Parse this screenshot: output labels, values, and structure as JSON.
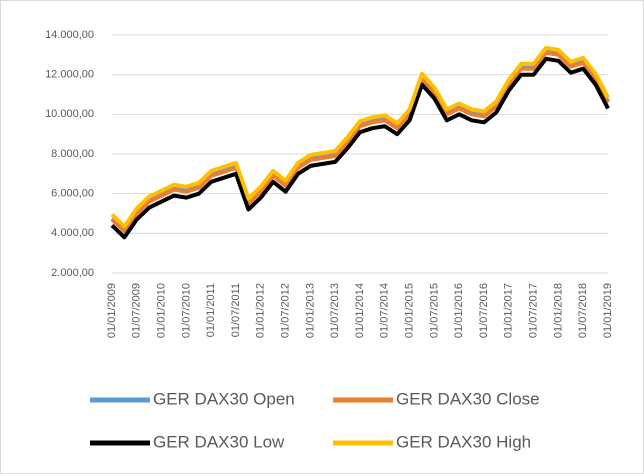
{
  "chart_data": {
    "type": "line",
    "categories": [
      "01/01/2009",
      null,
      "01/07/2009",
      null,
      "01/01/2010",
      null,
      "01/07/2010",
      null,
      "01/01/2011",
      null,
      "01/07/2011",
      null,
      "01/01/2012",
      null,
      "01/07/2012",
      null,
      "01/01/2013",
      null,
      "01/07/2013",
      null,
      "01/01/2014",
      null,
      "01/07/2014",
      null,
      "01/01/2015",
      null,
      "01/07/2015",
      null,
      "01/01/2016",
      null,
      "01/07/2016",
      null,
      "01/01/2017",
      null,
      "01/07/2017",
      null,
      "01/01/2018",
      null,
      "01/07/2018",
      null,
      "01/01/2019"
    ],
    "series": [
      {
        "name": "GER DAX30 Open",
        "color": "#5b9bd5",
        "values": [
          4750,
          4150,
          5050,
          5650,
          5950,
          6250,
          6150,
          6350,
          6950,
          7150,
          7350,
          5550,
          6150,
          6950,
          6450,
          7350,
          7750,
          7850,
          7950,
          8650,
          9450,
          9650,
          9750,
          9350,
          10050,
          11850,
          11150,
          10050,
          10350,
          10050,
          9950,
          10450,
          11550,
          12350,
          12350,
          13150,
          13050,
          12450,
          12650,
          11850,
          10650
        ]
      },
      {
        "name": "GER DAX30 Close",
        "color": "#ed7d31",
        "values": [
          4700,
          4100,
          5000,
          5600,
          5900,
          6200,
          6100,
          6300,
          6900,
          7100,
          7300,
          5500,
          6100,
          6900,
          6400,
          7300,
          7700,
          7800,
          7900,
          8600,
          9400,
          9600,
          9700,
          9300,
          10000,
          11800,
          11100,
          10000,
          10300,
          10000,
          9900,
          10400,
          11500,
          12300,
          12300,
          13100,
          13000,
          12400,
          12600,
          11800,
          10600
        ]
      },
      {
        "name": "GER DAX30 Low",
        "color": "#000000",
        "values": [
          4400,
          3800,
          4700,
          5300,
          5600,
          5900,
          5800,
          6000,
          6600,
          6800,
          7000,
          5200,
          5800,
          6600,
          6100,
          7000,
          7400,
          7500,
          7600,
          8300,
          9100,
          9300,
          9400,
          9000,
          9700,
          11500,
          10800,
          9700,
          10000,
          9700,
          9600,
          10100,
          11200,
          12000,
          12000,
          12800,
          12700,
          12100,
          12300,
          11500,
          10300
        ]
      },
      {
        "name": "GER DAX30 High",
        "color": "#ffc000",
        "values": [
          4950,
          4350,
          5250,
          5850,
          6150,
          6450,
          6350,
          6550,
          7150,
          7350,
          7550,
          5750,
          6350,
          7150,
          6650,
          7550,
          7950,
          8050,
          8150,
          8850,
          9650,
          9850,
          9950,
          9550,
          10250,
          12050,
          11350,
          10250,
          10550,
          10250,
          10150,
          10650,
          11750,
          12550,
          12550,
          13350,
          13250,
          12650,
          12850,
          12050,
          10850
        ]
      }
    ],
    "ylim": [
      2000,
      14000
    ],
    "yticks": [
      {
        "value": 2000,
        "label": "2.000,00"
      },
      {
        "value": 4000,
        "label": "4.000,00"
      },
      {
        "value": 6000,
        "label": "6.000,00"
      },
      {
        "value": 8000,
        "label": "8.000,00"
      },
      {
        "value": 10000,
        "label": "10.000,00"
      },
      {
        "value": 12000,
        "label": "12.000,00"
      },
      {
        "value": 14000,
        "label": "14.000,00"
      }
    ],
    "grid": true
  }
}
